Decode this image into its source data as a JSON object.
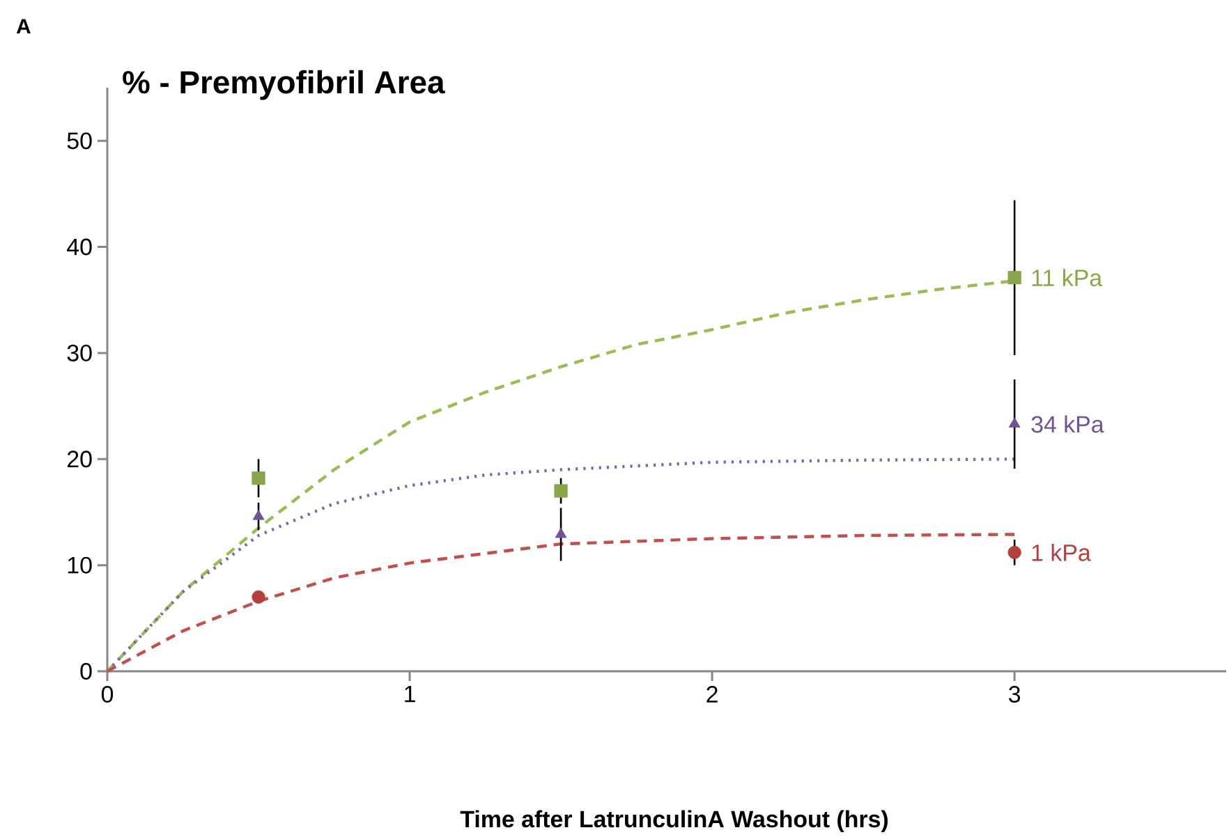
{
  "chart_data": {
    "type": "scatter",
    "title": "% - Premyofibril Area",
    "xlabel": "Time after LatrunculinA Washout (hrs)",
    "annotations": [
      "A"
    ],
    "xlim": [
      0,
      3.7
    ],
    "ylim": [
      0,
      55
    ],
    "xticks": [
      0,
      1,
      2,
      3
    ],
    "yticks": [
      0,
      10,
      20,
      30,
      40,
      50
    ],
    "series": [
      {
        "type": "line",
        "color": "#9bbb59",
        "line_style": "dashed",
        "marker": "none",
        "x": [
          0,
          0.25,
          0.5,
          0.75,
          1,
          1.25,
          1.5,
          1.75,
          2,
          2.25,
          2.5,
          2.75,
          3
        ],
        "values": [
          0,
          7.5,
          13.5,
          19,
          23.5,
          26.3,
          28.7,
          30.8,
          32.2,
          33.8,
          35.0,
          36.0,
          36.8
        ]
      },
      {
        "type": "line",
        "color": "#8064a2",
        "line_style": "dotted",
        "marker": "none",
        "x": [
          0,
          0.25,
          0.5,
          0.75,
          1,
          1.25,
          1.5,
          2,
          2.5,
          3
        ],
        "values": [
          0,
          7.5,
          12.8,
          15.8,
          17.5,
          18.5,
          19.0,
          19.7,
          19.9,
          20.0
        ]
      },
      {
        "type": "line",
        "color": "#c0504d",
        "line_style": "dashed",
        "marker": "none",
        "x": [
          0,
          0.25,
          0.5,
          0.75,
          1,
          1.5,
          2,
          2.5,
          3
        ],
        "values": [
          0,
          3.8,
          6.6,
          8.8,
          10.2,
          12.0,
          12.5,
          12.8,
          12.9
        ]
      },
      {
        "name": "11 kPa",
        "color": "#8aa64a",
        "marker": "square",
        "x": [
          0.5,
          1.5,
          3
        ],
        "values": [
          18.2,
          17.0,
          37.1
        ],
        "errors": [
          1.8,
          1.2,
          7.3
        ]
      },
      {
        "name": "34 kPa",
        "color": "#6f5392",
        "marker": "triangle",
        "x": [
          0.5,
          1.5,
          3
        ],
        "values": [
          14.6,
          12.9,
          23.3
        ],
        "errors": [
          1.3,
          2.5,
          4.2
        ]
      },
      {
        "name": "1 kPa",
        "color": "#b3403d",
        "marker": "circle",
        "x": [
          0.5,
          3
        ],
        "values": [
          7.0,
          11.2
        ],
        "errors": [
          null,
          1.2
        ]
      }
    ]
  }
}
